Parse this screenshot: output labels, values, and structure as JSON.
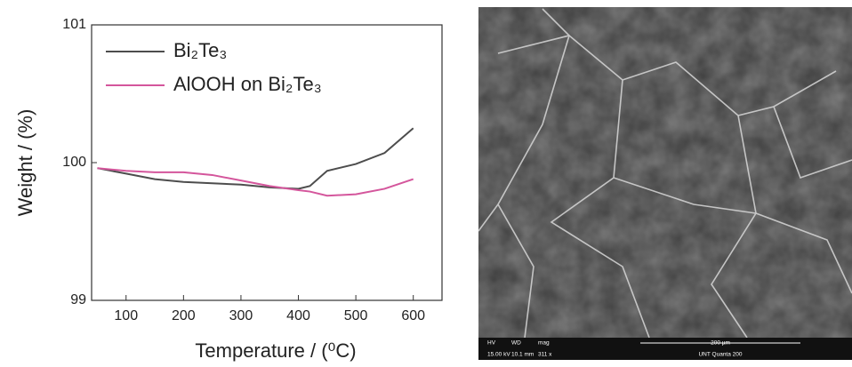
{
  "chart_data": {
    "type": "line",
    "x_label": "Temperature / (⁰C)",
    "y_label": "Weight / (%)",
    "x": [
      50,
      100,
      150,
      200,
      250,
      300,
      350,
      400,
      420,
      450,
      500,
      550,
      600
    ],
    "series": [
      {
        "name": "Bi₂Te₃",
        "color": "#4d4d4d",
        "values": [
          99.96,
          99.92,
          99.88,
          99.86,
          99.85,
          99.84,
          99.82,
          99.81,
          99.83,
          99.94,
          99.99,
          100.07,
          100.25
        ]
      },
      {
        "name": "AlOOH on Bi₂Te₃",
        "color": "#d4569c",
        "values": [
          99.96,
          99.94,
          99.93,
          99.93,
          99.91,
          99.87,
          99.83,
          99.8,
          99.79,
          99.76,
          99.77,
          99.81,
          99.88
        ]
      }
    ],
    "xlim": [
      40,
      650
    ],
    "xticks": [
      100,
      200,
      300,
      400,
      500,
      600
    ],
    "ylim": [
      99,
      101
    ],
    "yticks": [
      99,
      100,
      101
    ],
    "legend": "upper-left"
  },
  "sem_image": {
    "info": [
      "HV",
      "15.00 kV",
      "WD",
      "10.1 mm",
      "mag",
      "311 x",
      "200 µm",
      "UNT Quanta 200"
    ]
  }
}
